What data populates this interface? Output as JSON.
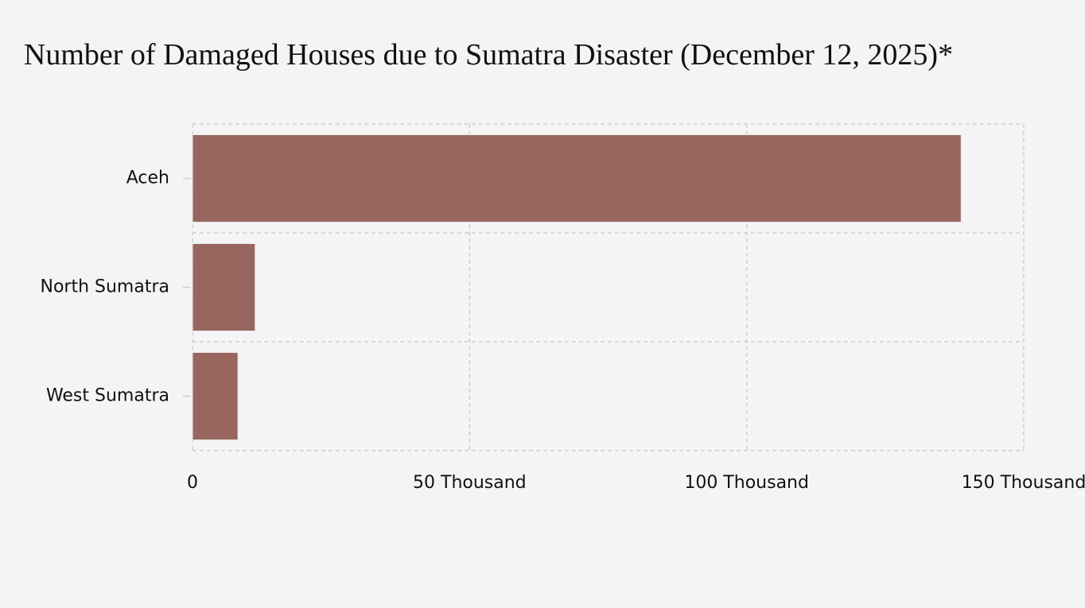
{
  "chart_data": {
    "type": "bar",
    "orientation": "horizontal",
    "title": "Number of Damaged Houses due to Sumatra Disaster (December 12, 2025)*",
    "categories": [
      "Aceh",
      "North Sumatra",
      "West Sumatra"
    ],
    "values": [
      138700,
      11300,
      8200
    ],
    "color": "#98665f",
    "xlim": [
      0,
      150000
    ],
    "xticks": [
      0,
      {
        "value": 50000,
        "label": "50 Thousand"
      },
      {
        "value": 100000,
        "label": "100 Thousand"
      },
      {
        "value": 150000,
        "label": "150 Thousand"
      }
    ],
    "grid": true
  }
}
